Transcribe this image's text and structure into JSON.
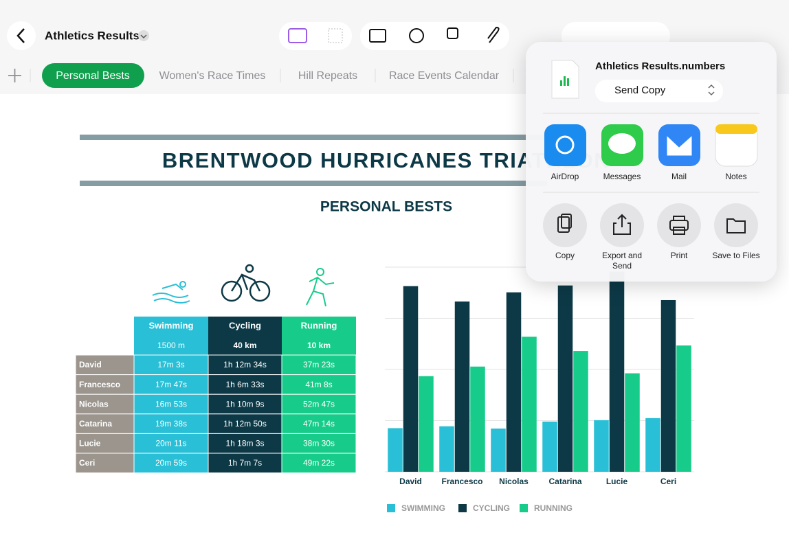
{
  "toolbar": {
    "document_title": "Athletics Results"
  },
  "tabs": [
    "Personal Bests",
    "Women's Race Times",
    "Hill Repeats",
    "Race Events Calendar"
  ],
  "sheet": {
    "title": "BRENTWOOD HURRICANES TRIATHLON",
    "subtitle": "PERSONAL BESTS",
    "table": {
      "header": [
        "Swimming",
        "Cycling",
        "Running"
      ],
      "distances": [
        "1500 m",
        "40 km",
        "10 km"
      ],
      "rows": [
        [
          "David",
          "17m 3s",
          "1h 12m 34s",
          "37m 23s"
        ],
        [
          "Francesco",
          "17m 47s",
          "1h 6m 33s",
          "41m 8s"
        ],
        [
          "Nicolas",
          "16m 53s",
          "1h 10m 9s",
          "52m 47s"
        ],
        [
          "Catarina",
          "19m 38s",
          "1h 12m 50s",
          "47m 14s"
        ],
        [
          "Lucie",
          "20m 11s",
          "1h 18m 3s",
          "38m 30s"
        ],
        [
          "Ceri",
          "20m 59s",
          "1h 7m 7s",
          "49m 22s"
        ]
      ]
    }
  },
  "chart_data": {
    "type": "bar",
    "categories": [
      "David",
      "Francesco",
      "Nicolas",
      "Catarina",
      "Lucie",
      "Ceri"
    ],
    "series": [
      {
        "name": "SWIMMING",
        "color": "#29bfd6",
        "values": [
          17.05,
          17.78,
          16.88,
          19.63,
          20.18,
          20.98
        ]
      },
      {
        "name": "CYCLING",
        "color": "#0d3947",
        "values": [
          72.57,
          66.55,
          70.15,
          72.83,
          78.3,
          67.12
        ]
      },
      {
        "name": "RUNNING",
        "color": "#17cc8a",
        "values": [
          37.38,
          41.13,
          52.78,
          47.23,
          38.5,
          49.37
        ]
      }
    ],
    "ylim": [
      0,
      80
    ],
    "grid_values": [
      0,
      20,
      40,
      60,
      80
    ],
    "grid": true
  },
  "share_sheet": {
    "file_name": "Athletics Results.numbers",
    "send_option": "Send Copy",
    "apps": [
      "AirDrop",
      "Messages",
      "Mail",
      "Notes"
    ],
    "actions": [
      "Copy",
      "Export and Send",
      "Print",
      "Save to Files"
    ]
  }
}
